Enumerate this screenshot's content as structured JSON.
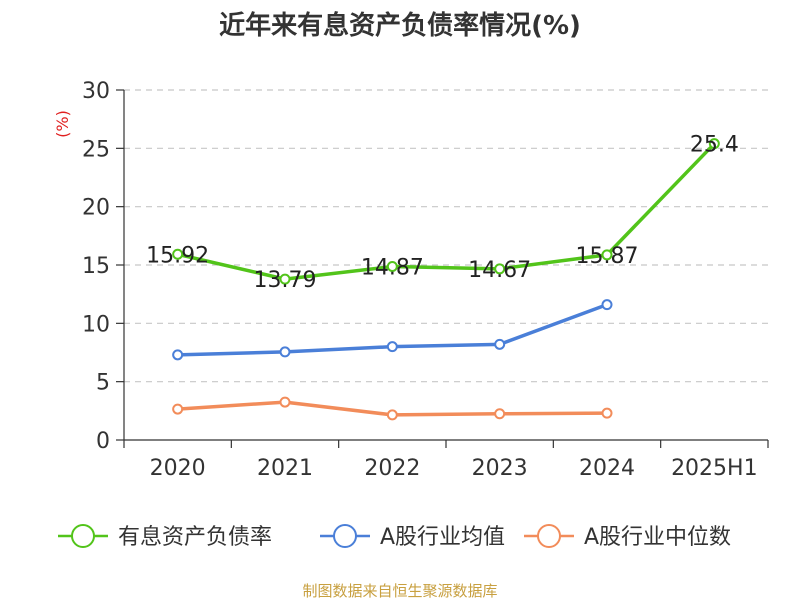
{
  "title": "近年来有息资产负债率情况(%)",
  "source": "制图数据来自恒生聚源数据库",
  "chart_data": {
    "type": "line",
    "categories": [
      "2020",
      "2021",
      "2022",
      "2023",
      "2024",
      "2025H1"
    ],
    "ylabel": "(%)",
    "ylim": [
      0,
      30
    ],
    "yticks": [
      0,
      5,
      10,
      15,
      20,
      25,
      30
    ],
    "grid": true,
    "legend_position": "bottom",
    "series": [
      {
        "name": "有息资产负债率",
        "color": "#52c41a",
        "values": [
          15.92,
          13.79,
          14.87,
          14.67,
          15.87,
          25.4
        ],
        "labels": [
          "15.92",
          "13.79",
          "14.87",
          "14.67",
          "15.87",
          "25.4"
        ],
        "show_labels": true
      },
      {
        "name": "A股行业均值",
        "color": "#4a7fd8",
        "values": [
          7.3,
          7.55,
          8.0,
          8.2,
          11.6,
          null
        ],
        "show_labels": false
      },
      {
        "name": "A股行业中位数",
        "color": "#f28c5a",
        "values": [
          2.65,
          3.25,
          2.15,
          2.25,
          2.3,
          null
        ],
        "show_labels": false
      }
    ]
  }
}
